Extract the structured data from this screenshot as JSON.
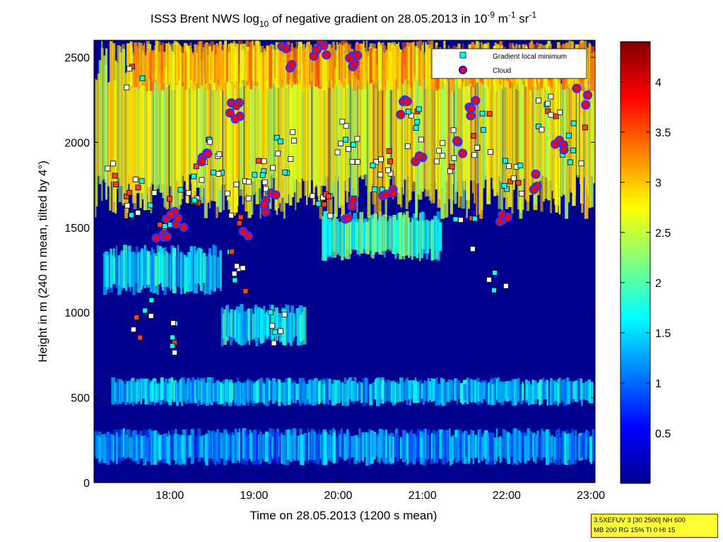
{
  "chart_data": {
    "type": "heatmap",
    "title": {
      "prefix": "ISS3 Brent NWS log",
      "sub": "10",
      "middle": " of negative gradient on 28.05.2013 in 10",
      "sup1": "-9",
      "m": " m",
      "sup2": "-1",
      "sr": " sr",
      "sup3": "-1"
    },
    "xlabel": "Time on 28.05.2013 (1200 s mean)",
    "ylabel": "Height in m (240 m mean, tilted by 4°)",
    "x_range_hours": [
      17.1,
      23.05
    ],
    "x_ticks": [
      {
        "value": 18,
        "label": "18:00"
      },
      {
        "value": 19,
        "label": "19:00"
      },
      {
        "value": 20,
        "label": "20:00"
      },
      {
        "value": 21,
        "label": "21:00"
      },
      {
        "value": 22,
        "label": "22:00"
      },
      {
        "value": 23,
        "label": "23:00"
      }
    ],
    "ylim": [
      0,
      2600
    ],
    "y_ticks": [
      {
        "value": 0,
        "label": "0"
      },
      {
        "value": 500,
        "label": "500"
      },
      {
        "value": 1000,
        "label": "1000"
      },
      {
        "value": 1500,
        "label": "1500"
      },
      {
        "value": 2000,
        "label": "2000"
      },
      {
        "value": 2500,
        "label": "2500"
      }
    ],
    "colorbar": {
      "range": [
        0,
        4.4
      ],
      "ticks": [
        {
          "value": 0.5,
          "label": "0.5"
        },
        {
          "value": 1,
          "label": "1"
        },
        {
          "value": 1.5,
          "label": "1.5"
        },
        {
          "value": 2,
          "label": "2"
        },
        {
          "value": 2.5,
          "label": "2.5"
        },
        {
          "value": 3,
          "label": "3"
        },
        {
          "value": 3.5,
          "label": "3.5"
        },
        {
          "value": 4,
          "label": "4"
        }
      ]
    },
    "legend": {
      "placement": "top-right",
      "entries": [
        {
          "label": "Gradient local minimum",
          "marker": "square",
          "color": "#00ffff"
        },
        {
          "label": "Cloud",
          "marker": "circle",
          "color": "#ff0000",
          "edge": "#0000ff"
        }
      ]
    },
    "layers": [
      {
        "name": "surface layer",
        "t0": 17.1,
        "t1": 23.05,
        "h0": 100,
        "h1": 320,
        "v": 1.2
      },
      {
        "name": "low band",
        "t0": 17.3,
        "t1": 23.0,
        "h0": 450,
        "h1": 620,
        "v": 1.4
      },
      {
        "name": "mid patch A",
        "t0": 17.2,
        "t1": 18.6,
        "h0": 1100,
        "h1": 1400,
        "v": 1.5
      },
      {
        "name": "mid patch B",
        "t0": 18.6,
        "t1": 19.6,
        "h0": 800,
        "h1": 1050,
        "v": 1.6
      },
      {
        "name": "mid patch C",
        "t0": 19.8,
        "t1": 21.2,
        "h0": 1300,
        "h1": 1600,
        "v": 1.9
      },
      {
        "name": "upper layer",
        "t0": 17.1,
        "t1": 23.05,
        "h0": 1550,
        "h1": 2600,
        "v": 2.7
      },
      {
        "name": "top layer",
        "t0": 17.5,
        "t1": 23.0,
        "h0": 2300,
        "h1": 2600,
        "v": 3.1
      }
    ],
    "gradient_minimum_clusters": [
      {
        "t": 17.3,
        "h": 1850,
        "n": 4
      },
      {
        "t": 17.6,
        "h": 1700,
        "n": 8
      },
      {
        "t": 17.9,
        "h": 1600,
        "n": 10
      },
      {
        "t": 18.2,
        "h": 1750,
        "n": 8
      },
      {
        "t": 18.5,
        "h": 1900,
        "n": 10
      },
      {
        "t": 18.8,
        "h": 1650,
        "n": 8
      },
      {
        "t": 19.1,
        "h": 1800,
        "n": 9
      },
      {
        "t": 19.4,
        "h": 1950,
        "n": 8
      },
      {
        "t": 19.8,
        "h": 1600,
        "n": 8
      },
      {
        "t": 20.1,
        "h": 2000,
        "n": 10
      },
      {
        "t": 20.5,
        "h": 1850,
        "n": 10
      },
      {
        "t": 20.9,
        "h": 2100,
        "n": 8
      },
      {
        "t": 21.3,
        "h": 1950,
        "n": 8
      },
      {
        "t": 21.7,
        "h": 2050,
        "n": 8
      },
      {
        "t": 22.1,
        "h": 1800,
        "n": 10
      },
      {
        "t": 22.5,
        "h": 2150,
        "n": 10
      },
      {
        "t": 22.8,
        "h": 2000,
        "n": 8
      },
      {
        "t": 17.7,
        "h": 950,
        "n": 6
      },
      {
        "t": 18.0,
        "h": 820,
        "n": 6
      },
      {
        "t": 18.8,
        "h": 1250,
        "n": 8
      },
      {
        "t": 19.3,
        "h": 900,
        "n": 6
      },
      {
        "t": 21.5,
        "h": 1480,
        "n": 5
      },
      {
        "t": 17.6,
        "h": 2350,
        "n": 4
      },
      {
        "t": 21.9,
        "h": 1200,
        "n": 4
      }
    ],
    "cloud_clusters": [
      {
        "t": 17.9,
        "h": 1500,
        "n": 5
      },
      {
        "t": 18.1,
        "h": 1550,
        "n": 5
      },
      {
        "t": 18.4,
        "h": 1900,
        "n": 4
      },
      {
        "t": 18.8,
        "h": 2200,
        "n": 6
      },
      {
        "t": 18.9,
        "h": 1500,
        "n": 2
      },
      {
        "t": 19.2,
        "h": 1650,
        "n": 5
      },
      {
        "t": 19.4,
        "h": 2500,
        "n": 4
      },
      {
        "t": 19.8,
        "h": 2550,
        "n": 5
      },
      {
        "t": 20.1,
        "h": 1600,
        "n": 4
      },
      {
        "t": 20.2,
        "h": 2450,
        "n": 5
      },
      {
        "t": 20.6,
        "h": 1700,
        "n": 4
      },
      {
        "t": 20.8,
        "h": 2200,
        "n": 4
      },
      {
        "t": 21.0,
        "h": 1850,
        "n": 3
      },
      {
        "t": 21.4,
        "h": 2000,
        "n": 3
      },
      {
        "t": 21.6,
        "h": 2200,
        "n": 4
      },
      {
        "t": 22.0,
        "h": 1600,
        "n": 4
      },
      {
        "t": 22.3,
        "h": 1750,
        "n": 3
      },
      {
        "t": 22.6,
        "h": 2000,
        "n": 4
      },
      {
        "t": 22.9,
        "h": 2250,
        "n": 3
      },
      {
        "t": 22.55,
        "h": 2580,
        "n": 1
      }
    ]
  },
  "infobox": {
    "line1": "3.5XEFUV 3 [30 2500] NH 600",
    "line2": "MB 200 RG 15% TI 0 HI 15"
  },
  "colors": {
    "field_low": "#00008f",
    "field_high": "#800000"
  }
}
